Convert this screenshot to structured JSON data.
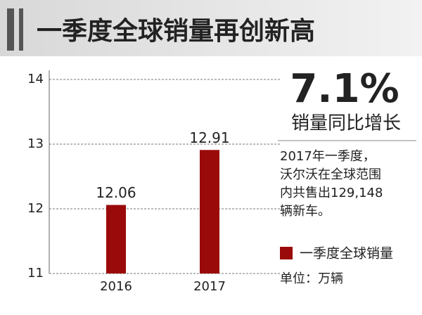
{
  "chart_data": {
    "type": "bar",
    "title": "一季度全球销量再创新高",
    "categories": [
      "2016",
      "2017"
    ],
    "series": [
      {
        "name": "一季度全球销量",
        "color": "#9b0a0a",
        "values": [
          12.06,
          12.91
        ]
      }
    ],
    "ylim": [
      11,
      14
    ],
    "yticks": [
      11,
      12,
      13,
      14
    ],
    "grid": true,
    "annotations": {
      "headline": "7.1%",
      "headline_caption": "销量同比增长",
      "note": [
        "2017年一季度，",
        "沃尔沃在全球范围",
        "内共售出129,148",
        "辆新车。"
      ],
      "unit": "单位：万辆"
    }
  }
}
